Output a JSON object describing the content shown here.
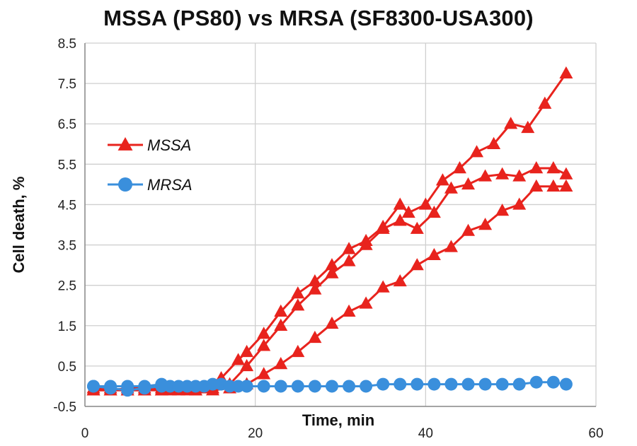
{
  "chart_data": {
    "type": "line",
    "title": "MSSA (PS80) vs MRSA (SF8300-USA300)",
    "xlabel": "Time, min",
    "ylabel": "Cell death, %",
    "xlim": [
      0,
      60
    ],
    "ylim": [
      -0.5,
      8.5
    ],
    "xticks": [
      0,
      20,
      40,
      60
    ],
    "yticks": [
      -0.5,
      0.5,
      1.5,
      2.5,
      3.5,
      4.5,
      5.5,
      6.5,
      7.5,
      8.5
    ],
    "grid": true,
    "legend_position": "upper-left",
    "series": [
      {
        "name": "MSSA",
        "color": "#e8231d",
        "marker": "triangle",
        "x": [
          1,
          3,
          5,
          7,
          9,
          10,
          12,
          14,
          16,
          18,
          19,
          21,
          23,
          25,
          27,
          29,
          31,
          33,
          35,
          37,
          38,
          40,
          42,
          44,
          46,
          48,
          50,
          52,
          54,
          56.5
        ],
        "y": [
          -0.1,
          -0.1,
          -0.05,
          -0.05,
          -0.1,
          -0.1,
          -0.1,
          -0.05,
          0.2,
          0.65,
          0.85,
          1.3,
          1.85,
          2.3,
          2.6,
          3.0,
          3.4,
          3.6,
          3.95,
          4.5,
          4.3,
          4.5,
          5.1,
          5.4,
          5.8,
          6.0,
          6.5,
          6.4,
          7.0,
          7.75
        ]
      },
      {
        "name": "MSSA",
        "color": "#e8231d",
        "marker": "triangle",
        "x": [
          1,
          3,
          5,
          7,
          9,
          11,
          13,
          15,
          17,
          19,
          21,
          23,
          25,
          27,
          29,
          31,
          33,
          35,
          37,
          39,
          41,
          43,
          45,
          47,
          49,
          51,
          53,
          55,
          56.5
        ],
        "y": [
          -0.1,
          -0.1,
          -0.1,
          -0.1,
          -0.05,
          -0.1,
          -0.1,
          -0.05,
          0.05,
          0.5,
          1.0,
          1.5,
          2.0,
          2.4,
          2.8,
          3.1,
          3.5,
          3.9,
          4.1,
          3.9,
          4.3,
          4.9,
          5.0,
          5.2,
          5.25,
          5.2,
          5.4,
          5.4,
          5.25
        ]
      },
      {
        "name": "MSSA",
        "color": "#e8231d",
        "marker": "triangle",
        "x": [
          1,
          3,
          5,
          7,
          9,
          11,
          13,
          15,
          17,
          19,
          21,
          23,
          25,
          27,
          29,
          31,
          33,
          35,
          37,
          39,
          41,
          43,
          45,
          47,
          49,
          51,
          53,
          55,
          56.5
        ],
        "y": [
          -0.05,
          -0.05,
          -0.1,
          -0.1,
          -0.1,
          -0.05,
          -0.1,
          -0.1,
          -0.05,
          0.05,
          0.3,
          0.55,
          0.85,
          1.2,
          1.55,
          1.85,
          2.05,
          2.45,
          2.6,
          3.0,
          3.25,
          3.45,
          3.85,
          4.0,
          4.35,
          4.5,
          4.95,
          4.95,
          4.95
        ]
      },
      {
        "name": "MRSA",
        "color": "#3a8fdc",
        "marker": "circle",
        "x": [
          1,
          3,
          5,
          7,
          9,
          10,
          12,
          14,
          16,
          18,
          19,
          21,
          23,
          25,
          27,
          29,
          31,
          33,
          35,
          37,
          39,
          41,
          43,
          45,
          47,
          49,
          51,
          53,
          55,
          56.5
        ],
        "y": [
          0.0,
          0.0,
          0.0,
          0.0,
          0.05,
          0.0,
          0.0,
          0.0,
          0.05,
          0.0,
          0.0,
          0.0,
          0.0,
          0.0,
          0.0,
          0.0,
          0.0,
          0.0,
          0.05,
          0.05,
          0.05,
          0.05,
          0.05,
          0.05,
          0.05,
          0.05,
          0.05,
          0.1,
          0.1,
          0.05
        ]
      },
      {
        "name": "MRSA",
        "color": "#3a8fdc",
        "marker": "circle",
        "x": [
          1,
          3,
          5,
          7,
          9,
          11,
          13,
          15,
          17,
          19
        ],
        "y": [
          0.0,
          -0.05,
          -0.1,
          -0.05,
          0.0,
          0.0,
          0.0,
          0.05,
          0.0,
          0.0
        ]
      }
    ],
    "legend": [
      {
        "label": "MSSA",
        "color": "#e8231d",
        "marker": "triangle"
      },
      {
        "label": "MRSA",
        "color": "#3a8fdc",
        "marker": "circle"
      }
    ]
  }
}
